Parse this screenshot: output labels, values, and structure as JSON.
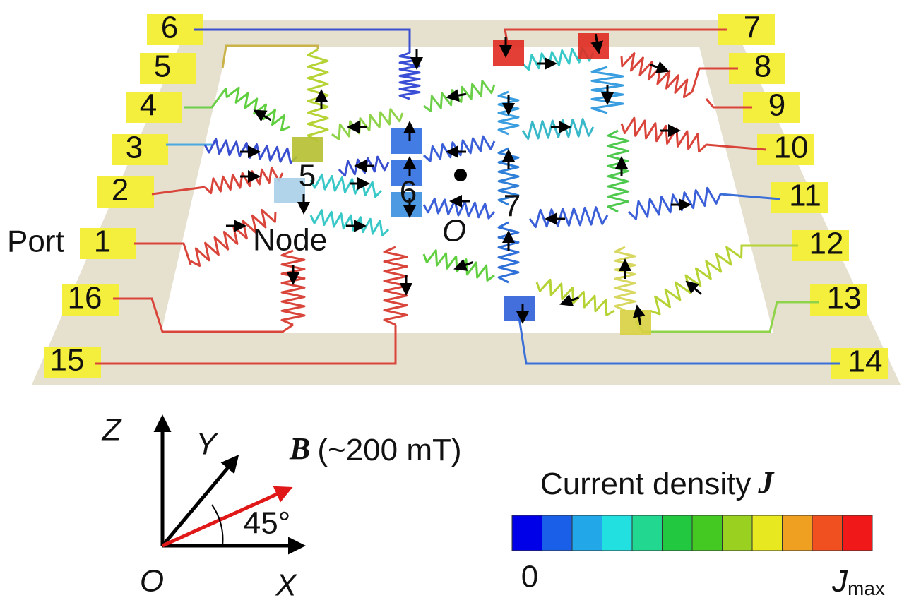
{
  "ports": {
    "label": "Port",
    "left": [
      "6",
      "5",
      "4",
      "3",
      "2",
      "1",
      "16",
      "15"
    ],
    "right": [
      "7",
      "8",
      "9",
      "10",
      "11",
      "12",
      "13",
      "14"
    ]
  },
  "nodes": {
    "label": "Node",
    "numbers": [
      "5",
      "6",
      "7"
    ]
  },
  "center_label": "O",
  "axes": {
    "z": "Z",
    "y": "Y",
    "x": "X",
    "origin": "O",
    "angle": "45°"
  },
  "field": {
    "symbol": "B",
    "magnitude": "(~200 mT)"
  },
  "legend": {
    "title": "Current density",
    "symbol": "J",
    "min": "0",
    "max_symbol": "J",
    "max_subscript": "max"
  }
}
